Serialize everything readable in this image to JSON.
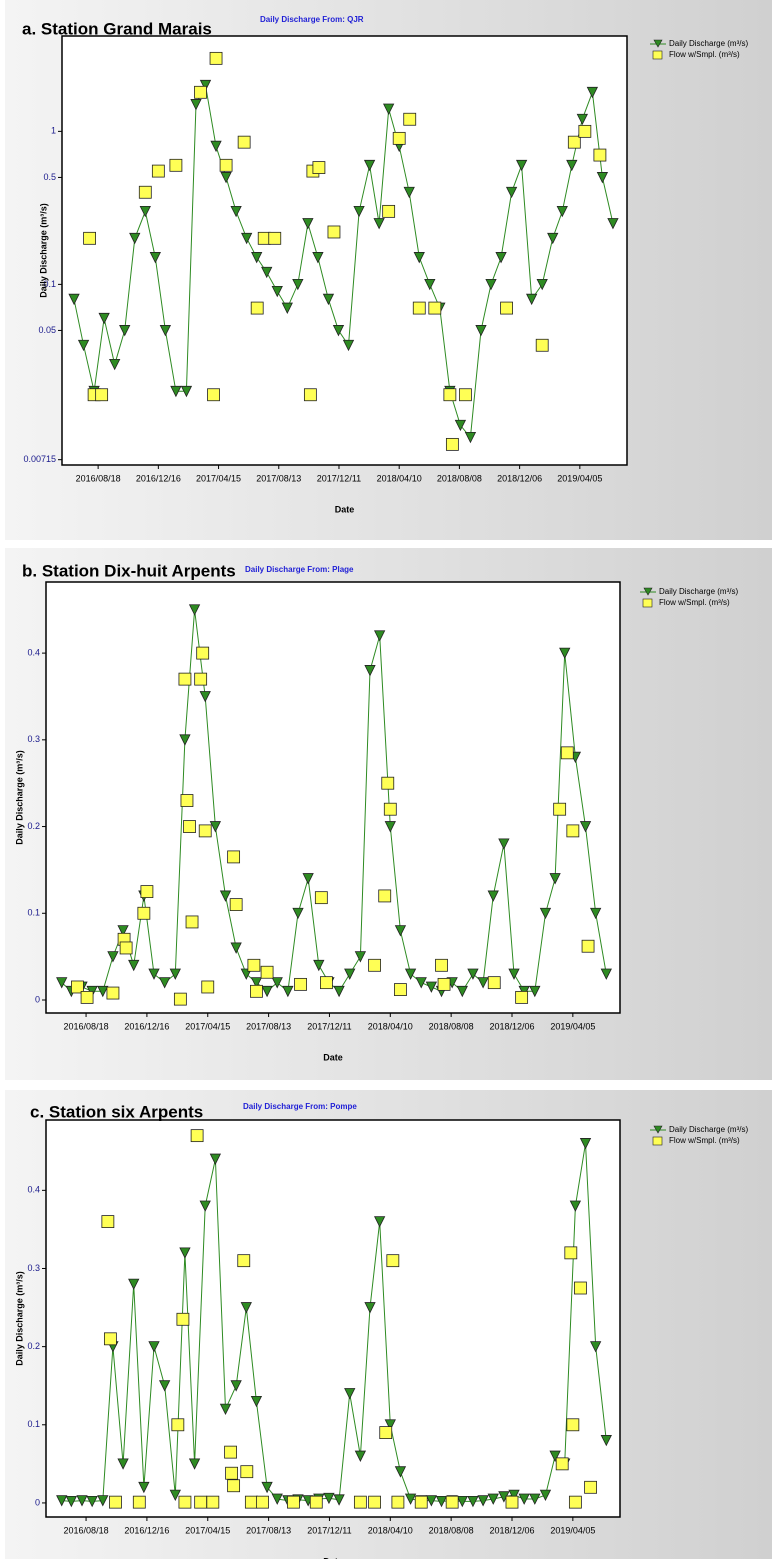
{
  "chart_data": [
    {
      "type": "scatter",
      "title": "a. Station Grand Marais",
      "subtitle": "Daily Discharge From: QJR",
      "x_label": "Date",
      "y_label": "Daily Discharge (m³/s)",
      "log_y": true,
      "xlim": [
        "2016/06/07",
        "2019/07/08"
      ],
      "ylim": [
        0.0066,
        4.2
      ],
      "xticks": [
        "2016/08/18",
        "2016/12/16",
        "2017/04/15",
        "2017/08/13",
        "2017/12/11",
        "2018/04/10",
        "2018/08/08",
        "2018/12/06",
        "2019/04/05"
      ],
      "yticks": [
        0.00715,
        0.05,
        0.1,
        0.5,
        1
      ],
      "series": [
        {
          "name": "Daily Discharge (m³/s)",
          "color": "#2e8b22",
          "marker": "triangle",
          "x": [
            "2016/07/01",
            "2016/07/20",
            "2016/08/10",
            "2016/08/30",
            "2016/09/20",
            "2016/10/10",
            "2016/10/30",
            "2016/11/20",
            "2016/12/10",
            "2016/12/30",
            "2017/01/20",
            "2017/02/10",
            "2017/03/01",
            "2017/03/20",
            "2017/04/10",
            "2017/04/30",
            "2017/05/20",
            "2017/06/10",
            "2017/06/30",
            "2017/07/20",
            "2017/08/10",
            "2017/08/30",
            "2017/09/20",
            "2017/10/10",
            "2017/10/30",
            "2017/11/20",
            "2017/12/10",
            "2017/12/30",
            "2018/01/20",
            "2018/02/10",
            "2018/03/01",
            "2018/03/20",
            "2018/04/10",
            "2018/04/30",
            "2018/05/20",
            "2018/06/10",
            "2018/06/30",
            "2018/07/20",
            "2018/08/10",
            "2018/08/30",
            "2018/09/20",
            "2018/10/10",
            "2018/10/30",
            "2018/11/20",
            "2018/12/10",
            "2018/12/30",
            "2019/01/20",
            "2019/02/10",
            "2019/03/01",
            "2019/03/20",
            "2019/04/10",
            "2019/04/30",
            "2019/05/20",
            "2019/06/10"
          ],
          "values": [
            0.08,
            0.04,
            0.02,
            0.06,
            0.03,
            0.05,
            0.2,
            0.3,
            0.15,
            0.05,
            0.02,
            0.02,
            1.5,
            2.0,
            0.8,
            0.5,
            0.3,
            0.2,
            0.15,
            0.12,
            0.09,
            0.07,
            0.1,
            0.25,
            0.15,
            0.08,
            0.05,
            0.04,
            0.3,
            0.6,
            0.25,
            1.4,
            0.8,
            0.4,
            0.15,
            0.1,
            0.07,
            0.02,
            0.012,
            0.01,
            0.05,
            0.1,
            0.15,
            0.4,
            0.6,
            0.08,
            0.1,
            0.2,
            0.3,
            0.6,
            1.2,
            1.8,
            0.5,
            0.25
          ]
        },
        {
          "name": "Flow w/Smpl. (m³/s)",
          "color": "#ffff55",
          "marker": "square",
          "x": [
            "2016/08/01",
            "2016/08/10",
            "2016/08/25",
            "2016/11/20",
            "2016/12/16",
            "2017/01/20",
            "2017/03/10",
            "2017/04/05",
            "2017/04/10",
            "2017/04/30",
            "2017/06/05",
            "2017/07/01",
            "2017/07/15",
            "2017/08/05",
            "2017/10/15",
            "2017/10/20",
            "2017/11/01",
            "2017/12/01",
            "2018/03/20",
            "2018/04/10",
            "2018/05/01",
            "2018/05/20",
            "2018/06/20",
            "2018/07/20",
            "2018/07/25",
            "2018/08/20",
            "2018/11/10",
            "2019/01/20",
            "2019/03/25",
            "2019/04/15",
            "2019/05/15"
          ],
          "values": [
            0.2,
            0.019,
            0.019,
            0.4,
            0.55,
            0.6,
            1.8,
            0.019,
            3.0,
            0.6,
            0.85,
            0.07,
            0.2,
            0.2,
            0.019,
            0.55,
            0.58,
            0.22,
            0.3,
            0.9,
            1.2,
            0.07,
            0.07,
            0.019,
            0.009,
            0.019,
            0.07,
            0.04,
            0.85,
            1.0,
            0.7
          ]
        }
      ]
    },
    {
      "type": "scatter",
      "title": "b. Station Dix-huit Arpents",
      "subtitle": "Daily Discharge From: Plage",
      "x_label": "Date",
      "y_label": "Daily Discharge (m³/s)",
      "log_y": false,
      "xlim": [
        "2016/05/31",
        "2019/07/07"
      ],
      "ylim": [
        -0.015,
        0.482
      ],
      "xticks": [
        "2016/08/18",
        "2016/12/16",
        "2017/04/15",
        "2017/08/13",
        "2017/12/11",
        "2018/04/10",
        "2018/08/08",
        "2018/12/06",
        "2019/04/05"
      ],
      "yticks": [
        0,
        0.1,
        0.2,
        0.3,
        0.4
      ],
      "series": [
        {
          "name": "Daily Discharge (m³/s)",
          "color": "#2e8b22",
          "marker": "triangle",
          "x": [
            "2016/07/01",
            "2016/07/20",
            "2016/08/10",
            "2016/08/30",
            "2016/09/20",
            "2016/10/10",
            "2016/10/30",
            "2016/11/20",
            "2016/12/10",
            "2016/12/30",
            "2017/01/20",
            "2017/02/10",
            "2017/03/01",
            "2017/03/20",
            "2017/04/10",
            "2017/04/30",
            "2017/05/20",
            "2017/06/10",
            "2017/06/30",
            "2017/07/20",
            "2017/08/10",
            "2017/08/30",
            "2017/09/20",
            "2017/10/10",
            "2017/10/30",
            "2017/11/20",
            "2017/12/10",
            "2017/12/30",
            "2018/01/20",
            "2018/02/10",
            "2018/03/01",
            "2018/03/20",
            "2018/04/10",
            "2018/04/30",
            "2018/05/20",
            "2018/06/10",
            "2018/06/30",
            "2018/07/20",
            "2018/08/10",
            "2018/08/30",
            "2018/09/20",
            "2018/10/10",
            "2018/10/30",
            "2018/11/20",
            "2018/12/10",
            "2018/12/30",
            "2019/01/20",
            "2019/02/10",
            "2019/03/01",
            "2019/03/20",
            "2019/04/10",
            "2019/04/30",
            "2019/05/20",
            "2019/06/10"
          ],
          "values": [
            0.02,
            0.01,
            0.015,
            0.01,
            0.01,
            0.05,
            0.08,
            0.04,
            0.12,
            0.03,
            0.02,
            0.03,
            0.3,
            0.45,
            0.35,
            0.2,
            0.12,
            0.06,
            0.03,
            0.02,
            0.01,
            0.02,
            0.01,
            0.1,
            0.14,
            0.04,
            0.02,
            0.01,
            0.03,
            0.05,
            0.38,
            0.42,
            0.2,
            0.08,
            0.03,
            0.02,
            0.015,
            0.01,
            0.02,
            0.01,
            0.03,
            0.02,
            0.12,
            0.18,
            0.03,
            0.01,
            0.01,
            0.1,
            0.14,
            0.4,
            0.28,
            0.2,
            0.1,
            0.03
          ]
        },
        {
          "name": "Flow w/Smpl. (m³/s)",
          "color": "#ffff55",
          "marker": "square",
          "x": [
            "2016/08/01",
            "2016/08/20",
            "2016/10/10",
            "2016/11/01",
            "2016/11/05",
            "2016/12/10",
            "2016/12/16",
            "2017/02/20",
            "2017/03/01",
            "2017/03/05",
            "2017/03/10",
            "2017/03/15",
            "2017/04/01",
            "2017/04/05",
            "2017/04/10",
            "2017/04/15",
            "2017/06/05",
            "2017/06/10",
            "2017/07/15",
            "2017/07/20",
            "2017/08/10",
            "2017/10/15",
            "2017/11/25",
            "2017/12/05",
            "2018/03/10",
            "2018/03/30",
            "2018/04/05",
            "2018/04/10",
            "2018/04/30",
            "2018/07/20",
            "2018/07/25",
            "2018/11/01",
            "2018/12/25",
            "2019/03/10",
            "2019/03/25",
            "2019/04/05",
            "2019/05/05"
          ],
          "values": [
            0.015,
            0.003,
            0.008,
            0.07,
            0.06,
            0.1,
            0.125,
            0.001,
            0.37,
            0.23,
            0.2,
            0.09,
            0.37,
            0.4,
            0.195,
            0.015,
            0.165,
            0.11,
            0.04,
            0.01,
            0.032,
            0.018,
            0.118,
            0.02,
            0.04,
            0.12,
            0.25,
            0.22,
            0.012,
            0.04,
            0.018,
            0.02,
            0.003,
            0.22,
            0.285,
            0.195,
            0.062
          ]
        }
      ]
    },
    {
      "type": "scatter",
      "title": "c. Station six Arpents",
      "subtitle": "Daily Discharge From: Pompe",
      "x_label": "Date",
      "y_label": "Daily Discharge (m³/s)",
      "log_y": false,
      "xlim": [
        "2016/05/31",
        "2019/07/07"
      ],
      "ylim": [
        -0.018,
        0.49
      ],
      "xticks": [
        "2016/08/18",
        "2016/12/16",
        "2017/04/15",
        "2017/08/13",
        "2017/12/11",
        "2018/04/10",
        "2018/08/08",
        "2018/12/06",
        "2019/04/05"
      ],
      "yticks": [
        0,
        0.1,
        0.2,
        0.3,
        0.4
      ],
      "series": [
        {
          "name": "Daily Discharge (m³/s)",
          "color": "#2e8b22",
          "marker": "triangle",
          "x": [
            "2016/07/01",
            "2016/07/20",
            "2016/08/10",
            "2016/08/30",
            "2016/09/20",
            "2016/10/10",
            "2016/10/30",
            "2016/11/20",
            "2016/12/10",
            "2016/12/30",
            "2017/01/20",
            "2017/02/10",
            "2017/03/01",
            "2017/03/20",
            "2017/04/10",
            "2017/04/30",
            "2017/05/20",
            "2017/06/10",
            "2017/06/30",
            "2017/07/20",
            "2017/08/10",
            "2017/08/30",
            "2017/09/20",
            "2017/10/10",
            "2017/10/30",
            "2017/11/20",
            "2017/12/10",
            "2017/12/30",
            "2018/01/20",
            "2018/02/10",
            "2018/03/01",
            "2018/03/20",
            "2018/04/10",
            "2018/04/30",
            "2018/05/20",
            "2018/06/10",
            "2018/06/30",
            "2018/07/20",
            "2018/08/10",
            "2018/08/30",
            "2018/09/20",
            "2018/10/10",
            "2018/10/30",
            "2018/11/20",
            "2018/12/10",
            "2018/12/30",
            "2019/01/20",
            "2019/02/10",
            "2019/03/01",
            "2019/03/20",
            "2019/04/10",
            "2019/04/30",
            "2019/05/20",
            "2019/06/10"
          ],
          "values": [
            0.003,
            0.002,
            0.003,
            0.002,
            0.003,
            0.2,
            0.05,
            0.28,
            0.02,
            0.2,
            0.15,
            0.01,
            0.32,
            0.05,
            0.38,
            0.44,
            0.12,
            0.15,
            0.25,
            0.13,
            0.02,
            0.005,
            0.003,
            0.004,
            0.003,
            0.005,
            0.006,
            0.004,
            0.14,
            0.06,
            0.25,
            0.36,
            0.1,
            0.04,
            0.005,
            0.003,
            0.003,
            0.002,
            0.003,
            0.002,
            0.002,
            0.003,
            0.005,
            0.008,
            0.01,
            0.005,
            0.005,
            0.01,
            0.06,
            0.05,
            0.38,
            0.46,
            0.2,
            0.08
          ]
        },
        {
          "name": "Flow w/Smpl. (m³/s)",
          "color": "#ffff55",
          "marker": "square",
          "x": [
            "2016/09/30",
            "2016/10/05",
            "2016/10/15",
            "2016/12/01",
            "2017/02/15",
            "2017/02/25",
            "2017/03/01",
            "2017/03/25",
            "2017/04/01",
            "2017/04/25",
            "2017/05/30",
            "2017/06/01",
            "2017/06/05",
            "2017/06/25",
            "2017/07/01",
            "2017/07/10",
            "2017/08/01",
            "2017/10/01",
            "2017/11/15",
            "2018/02/10",
            "2018/03/10",
            "2018/04/01",
            "2018/04/15",
            "2018/04/25",
            "2018/06/10",
            "2018/08/10",
            "2018/12/06",
            "2019/03/15",
            "2019/04/01",
            "2019/04/05",
            "2019/04/10",
            "2019/04/20",
            "2019/05/10"
          ],
          "values": [
            0.36,
            0.21,
            0.001,
            0.001,
            0.1,
            0.235,
            0.001,
            0.47,
            0.001,
            0.001,
            0.065,
            0.038,
            0.022,
            0.31,
            0.04,
            0.001,
            0.001,
            0.001,
            0.001,
            0.001,
            0.001,
            0.09,
            0.31,
            0.001,
            0.001,
            0.001,
            0.001,
            0.05,
            0.32,
            0.1,
            0.001,
            0.275,
            0.02
          ]
        }
      ]
    }
  ]
}
